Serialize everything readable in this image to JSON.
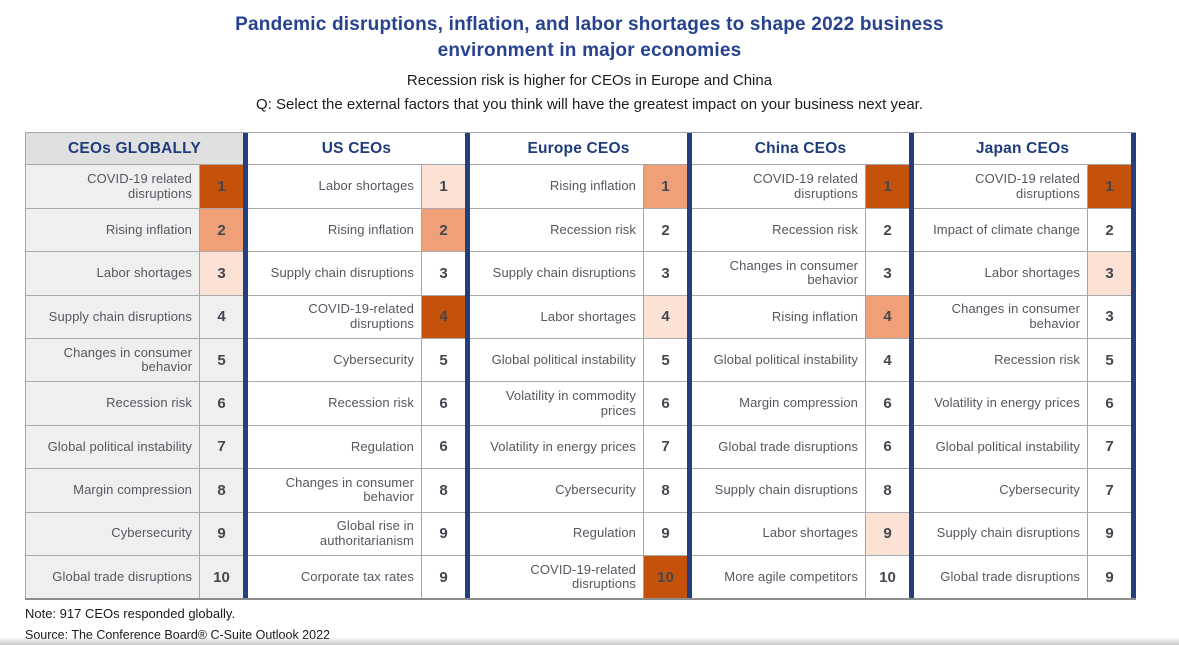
{
  "header": {
    "title_line1": "Pandemic disruptions, inflation, and labor shortages to shape 2022 business",
    "title_line2": "environment in major economies"
  },
  "colors": {
    "title_blue": "#27428F",
    "column_header_blue": "#1E3C7B",
    "divider_navy": "#24407C",
    "rank_high": "#C4520A",
    "rank_medium": "#F0A078",
    "rank_low": "#FBE2D5",
    "shaded_column_bg": "#EFEFEF",
    "shaded_header_bg": "#E0E0E0"
  },
  "chart_data": {
    "type": "table",
    "title": "Pandemic disruptions, inflation, and labor shortages to shape 2022 business environment in major economies",
    "subtitle": "Recession risk is higher for CEOs in Europe and China",
    "question": "Q: Select the external factors that you think will have the greatest impact on your business next year.",
    "note": "Note: 917 CEOs responded globally.",
    "source": "Source: The Conference Board® C-Suite Outlook 2022",
    "highlight_legend": "Cell shading intensity (high/medium/low) marks emphasized ranks",
    "columns": [
      {
        "title": "CEOs GLOBALLY",
        "shaded": true,
        "rows": [
          {
            "factor": "COVID-19 related disruptions",
            "rank": 1,
            "highlight": "high"
          },
          {
            "factor": "Rising inflation",
            "rank": 2,
            "highlight": "medium"
          },
          {
            "factor": "Labor shortages",
            "rank": 3,
            "highlight": "low"
          },
          {
            "factor": "Supply chain disruptions",
            "rank": 4,
            "highlight": "none"
          },
          {
            "factor": "Changes in consumer behavior",
            "rank": 5,
            "highlight": "none"
          },
          {
            "factor": "Recession risk",
            "rank": 6,
            "highlight": "none"
          },
          {
            "factor": "Global political instability",
            "rank": 7,
            "highlight": "none"
          },
          {
            "factor": "Margin compression",
            "rank": 8,
            "highlight": "none"
          },
          {
            "factor": "Cybersecurity",
            "rank": 9,
            "highlight": "none"
          },
          {
            "factor": "Global trade disruptions",
            "rank": 10,
            "highlight": "none"
          }
        ]
      },
      {
        "title": "US CEOs",
        "shaded": false,
        "rows": [
          {
            "factor": "Labor shortages",
            "rank": 1,
            "highlight": "low"
          },
          {
            "factor": "Rising inflation",
            "rank": 2,
            "highlight": "medium"
          },
          {
            "factor": "Supply chain disruptions",
            "rank": 3,
            "highlight": "none"
          },
          {
            "factor": "COVID-19-related disruptions",
            "rank": 4,
            "highlight": "high"
          },
          {
            "factor": "Cybersecurity",
            "rank": 5,
            "highlight": "none"
          },
          {
            "factor": "Recession risk",
            "rank": 6,
            "highlight": "none"
          },
          {
            "factor": "Regulation",
            "rank": 6,
            "highlight": "none"
          },
          {
            "factor": "Changes in consumer behavior",
            "rank": 8,
            "highlight": "none"
          },
          {
            "factor": "Global rise in authoritarianism",
            "rank": 9,
            "highlight": "none"
          },
          {
            "factor": "Corporate tax rates",
            "rank": 9,
            "highlight": "none"
          }
        ]
      },
      {
        "title": "Europe CEOs",
        "shaded": false,
        "rows": [
          {
            "factor": "Rising inflation",
            "rank": 1,
            "highlight": "medium"
          },
          {
            "factor": "Recession risk",
            "rank": 2,
            "highlight": "none"
          },
          {
            "factor": "Supply chain disruptions",
            "rank": 3,
            "highlight": "none"
          },
          {
            "factor": "Labor shortages",
            "rank": 4,
            "highlight": "low"
          },
          {
            "factor": "Global political instability",
            "rank": 5,
            "highlight": "none"
          },
          {
            "factor": "Volatility in commodity prices",
            "rank": 6,
            "highlight": "none"
          },
          {
            "factor": "Volatility in energy prices",
            "rank": 7,
            "highlight": "none"
          },
          {
            "factor": "Cybersecurity",
            "rank": 8,
            "highlight": "none"
          },
          {
            "factor": "Regulation",
            "rank": 9,
            "highlight": "none"
          },
          {
            "factor": "COVID-19-related disruptions",
            "rank": 10,
            "highlight": "high"
          }
        ]
      },
      {
        "title": "China CEOs",
        "shaded": false,
        "rows": [
          {
            "factor": "COVID-19 related disruptions",
            "rank": 1,
            "highlight": "high"
          },
          {
            "factor": "Recession risk",
            "rank": 2,
            "highlight": "none"
          },
          {
            "factor": "Changes in consumer behavior",
            "rank": 3,
            "highlight": "none"
          },
          {
            "factor": "Rising inflation",
            "rank": 4,
            "highlight": "medium"
          },
          {
            "factor": "Global political instability",
            "rank": 4,
            "highlight": "none"
          },
          {
            "factor": "Margin compression",
            "rank": 6,
            "highlight": "none"
          },
          {
            "factor": "Global trade disruptions",
            "rank": 6,
            "highlight": "none"
          },
          {
            "factor": "Supply chain disruptions",
            "rank": 8,
            "highlight": "none"
          },
          {
            "factor": "Labor shortages",
            "rank": 9,
            "highlight": "low"
          },
          {
            "factor": "More agile competitors",
            "rank": 10,
            "highlight": "none"
          }
        ]
      },
      {
        "title": "Japan CEOs",
        "shaded": false,
        "rows": [
          {
            "factor": "COVID-19 related disruptions",
            "rank": 1,
            "highlight": "high"
          },
          {
            "factor": "Impact of climate change",
            "rank": 2,
            "highlight": "none"
          },
          {
            "factor": "Labor shortages",
            "rank": 3,
            "highlight": "low"
          },
          {
            "factor": "Changes in consumer behavior",
            "rank": 3,
            "highlight": "none"
          },
          {
            "factor": "Recession risk",
            "rank": 5,
            "highlight": "none"
          },
          {
            "factor": "Volatility in energy prices",
            "rank": 6,
            "highlight": "none"
          },
          {
            "factor": "Global political instability",
            "rank": 7,
            "highlight": "none"
          },
          {
            "factor": "Cybersecurity",
            "rank": 7,
            "highlight": "none"
          },
          {
            "factor": "Supply chain disruptions",
            "rank": 9,
            "highlight": "none"
          },
          {
            "factor": "Global trade disruptions",
            "rank": 9,
            "highlight": "none"
          }
        ]
      }
    ]
  }
}
